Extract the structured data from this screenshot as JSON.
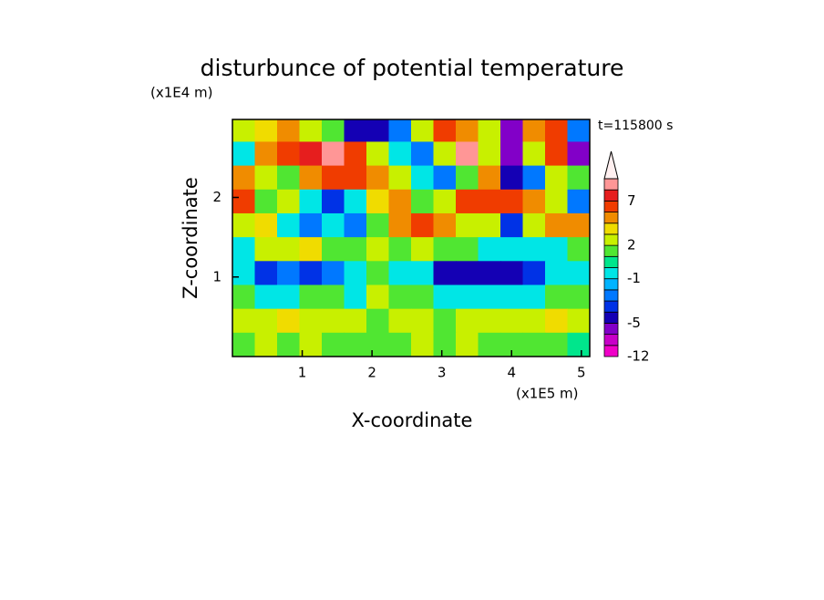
{
  "chart_data": {
    "type": "contour",
    "title": "disturbunce of potential temperature",
    "x_label": "X-coordinate",
    "y_label": "Z-coordinate",
    "x_unit": "(x1E5 m)",
    "y_unit": "(x1E4 m)",
    "time_label": "t=115800 s",
    "xlim": [
      0,
      5.12
    ],
    "ylim": [
      0,
      2.98
    ],
    "xticks": [
      1,
      2,
      3,
      4,
      5
    ],
    "yticks": [
      1,
      2
    ],
    "x": [
      0.16,
      0.48,
      0.8,
      1.12,
      1.44,
      1.76,
      2.08,
      2.4,
      2.72,
      3.04,
      3.36,
      3.68,
      4.0,
      4.32,
      4.64,
      4.96
    ],
    "z": [
      2.85,
      2.55,
      2.25,
      1.95,
      1.65,
      1.35,
      1.05,
      0.75,
      0.45,
      0.15
    ],
    "values": [
      [
        2,
        3,
        4,
        2,
        1,
        -5,
        -5,
        -3,
        2,
        5,
        4,
        2,
        -7,
        4,
        6,
        -3
      ],
      [
        -1,
        4,
        6,
        7,
        9,
        6,
        2,
        -1,
        -3,
        2,
        9,
        2,
        -7,
        2,
        5,
        -7
      ],
      [
        4,
        2,
        1,
        4,
        6,
        6,
        4,
        2,
        -1,
        -3,
        1,
        4,
        -5,
        -3,
        2,
        1
      ],
      [
        5,
        1,
        2,
        -1,
        -4,
        -1,
        3,
        4,
        1,
        2,
        5,
        6,
        6,
        4,
        2,
        -3
      ],
      [
        2,
        3,
        -1,
        -3,
        -1,
        -3,
        1,
        4,
        5,
        4,
        2,
        2,
        -4,
        2,
        4,
        4
      ],
      [
        -1,
        2,
        2,
        3,
        1,
        1,
        2,
        1,
        2,
        1,
        1,
        -1,
        -1,
        -1,
        -1,
        1
      ],
      [
        -1,
        -4,
        -3,
        -4,
        -3,
        -1,
        1,
        -1,
        -1,
        -5,
        -5,
        -5,
        -5,
        -4,
        -1,
        -1
      ],
      [
        1,
        -1,
        -1,
        1,
        1,
        -1,
        2,
        1,
        1,
        -1,
        -1,
        -1,
        -1,
        -1,
        1,
        1
      ],
      [
        2,
        2,
        3,
        2,
        2,
        2,
        1,
        2,
        2,
        1,
        2,
        2,
        2,
        2,
        3,
        2
      ],
      [
        1,
        2,
        1,
        2,
        1,
        1,
        1,
        1,
        2,
        1,
        2,
        1,
        1,
        1,
        1,
        0
      ]
    ],
    "colorbar": {
      "levels": [
        -12,
        -9,
        -7,
        -5,
        -4,
        -3,
        -2,
        -1,
        0,
        1,
        2,
        3,
        4,
        5,
        7,
        9,
        11
      ],
      "colors": [
        "#f000c8",
        "#c800c8",
        "#8200c8",
        "#1400b4",
        "#0032e6",
        "#0078ff",
        "#00b4ff",
        "#00e6e6",
        "#00e68c",
        "#50e632",
        "#c8f000",
        "#f0dc00",
        "#f08c00",
        "#f03c00",
        "#e61e1e",
        "#ff9696",
        "#fff0f0"
      ],
      "ticks": [
        7,
        2,
        -1,
        -5,
        -12
      ]
    }
  }
}
